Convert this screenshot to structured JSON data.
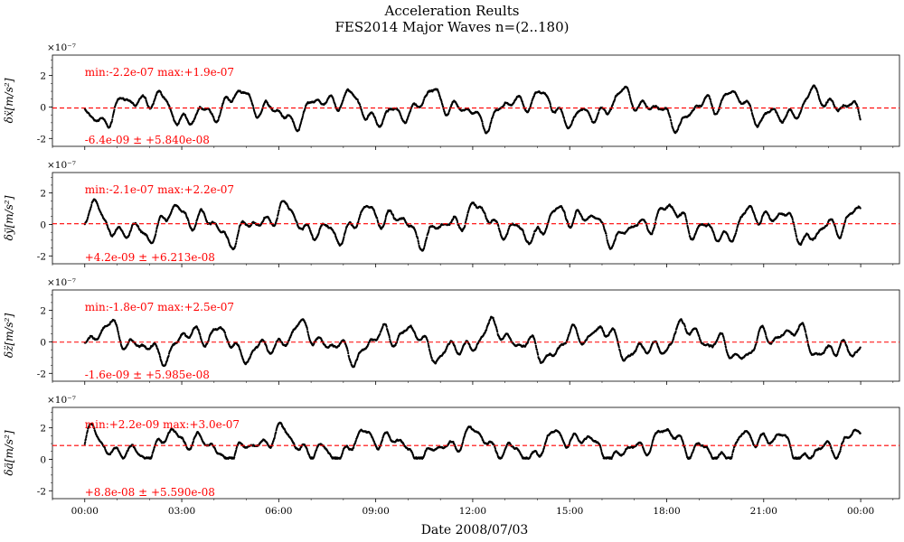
{
  "chart_data": {
    "type": "scatter",
    "title": "Acceleration Reults",
    "subtitle": "FES2014 Major Waves n=(2..180)",
    "xlabel": "Date 2008/07/03",
    "x_ticks": [
      "00:00",
      "03:00",
      "06:00",
      "09:00",
      "12:00",
      "15:00",
      "18:00",
      "21:00",
      "00:00"
    ],
    "xlim_hours": [
      -1.0,
      25.2
    ],
    "y_multiplier_label": "×10⁻⁷",
    "ylim": [
      -2.5e-07,
      3.3e-07
    ],
    "y_ticks": [
      "-2",
      "0",
      "2"
    ],
    "marker_color": "#000000",
    "reference_line_color": "#ff0000",
    "panels": [
      {
        "ylabel": "δẍ[m/s²]",
        "stats_label": "min:-2.2e-07 max:+1.9e-07",
        "mean_label": "-6.4e-09 ± +5.840e-08",
        "min": -2.2e-07,
        "max": 1.9e-07,
        "mean": -6.4e-09,
        "std": 5.84e-08
      },
      {
        "ylabel": "δÿ[m/s²]",
        "stats_label": "min:-2.1e-07 max:+2.2e-07",
        "mean_label": "+4.2e-09 ± +6.213e-08",
        "min": -2.1e-07,
        "max": 2.2e-07,
        "mean": 4.2e-09,
        "std": 6.213e-08
      },
      {
        "ylabel": "δz̈[m/s²]",
        "stats_label": "min:-1.8e-07 max:+2.5e-07",
        "mean_label": "-1.6e-09 ± +5.985e-08",
        "min": -1.8e-07,
        "max": 2.5e-07,
        "mean": -1.6e-09,
        "std": 5.985e-08
      },
      {
        "ylabel": "δä[m/s²]",
        "stats_label": "min:+2.2e-09 max:+3.0e-07",
        "mean_label": "+8.8e-08 ± +5.590e-08",
        "min": 2.2e-09,
        "max": 3e-07,
        "mean": 8.8e-08,
        "std": 5.59e-08
      }
    ]
  }
}
